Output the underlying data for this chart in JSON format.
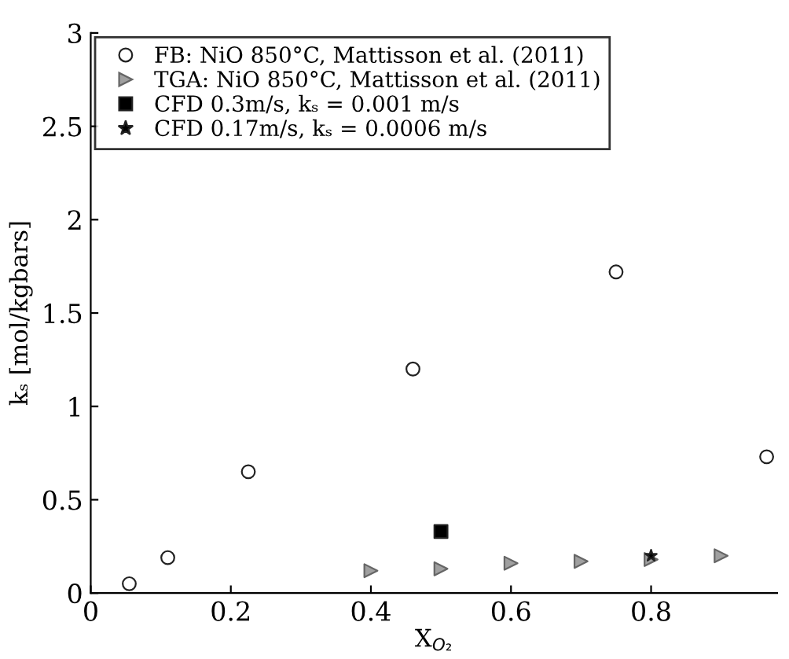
{
  "chart_data": {
    "type": "scatter",
    "xlabel": "X$_{O₂}$",
    "ylabel": "kₛ [mol/kgbars]",
    "xlim": [
      0,
      0.98
    ],
    "ylim": [
      0,
      3
    ],
    "xticks": [
      0,
      0.2,
      0.4,
      0.6,
      0.8
    ],
    "yticks": [
      0,
      0.5,
      1,
      1.5,
      2,
      2.5,
      3
    ],
    "grid": false,
    "legend": "top left",
    "series": [
      {
        "name": "FB: NiO 850°C, Mattisson et al. (2011)",
        "color": "#ffffff",
        "marker": "circle",
        "x": [
          0.055,
          0.11,
          0.225,
          0.46,
          0.75,
          0.965
        ],
        "values": [
          0.05,
          0.19,
          0.65,
          1.2,
          1.72,
          0.73
        ]
      },
      {
        "name": "TGA: NiO 850°C, Mattisson et al. (2011)",
        "color": "#a0a0a0",
        "marker": "triangle",
        "x": [
          0.4,
          0.5,
          0.6,
          0.7,
          0.8,
          0.9
        ],
        "values": [
          0.12,
          0.13,
          0.16,
          0.17,
          0.18,
          0.2
        ]
      },
      {
        "name": "CFD 0.3m/s, kₛ = 0.001 m/s",
        "color": "#000000",
        "marker": "square",
        "x": [
          0.5
        ],
        "values": [
          0.33
        ]
      },
      {
        "name": "CFD 0.17m/s, kₛ = 0.0006 m/s",
        "color": "#000000",
        "marker": "star",
        "x": [
          0.8
        ],
        "values": [
          0.2
        ]
      }
    ]
  }
}
